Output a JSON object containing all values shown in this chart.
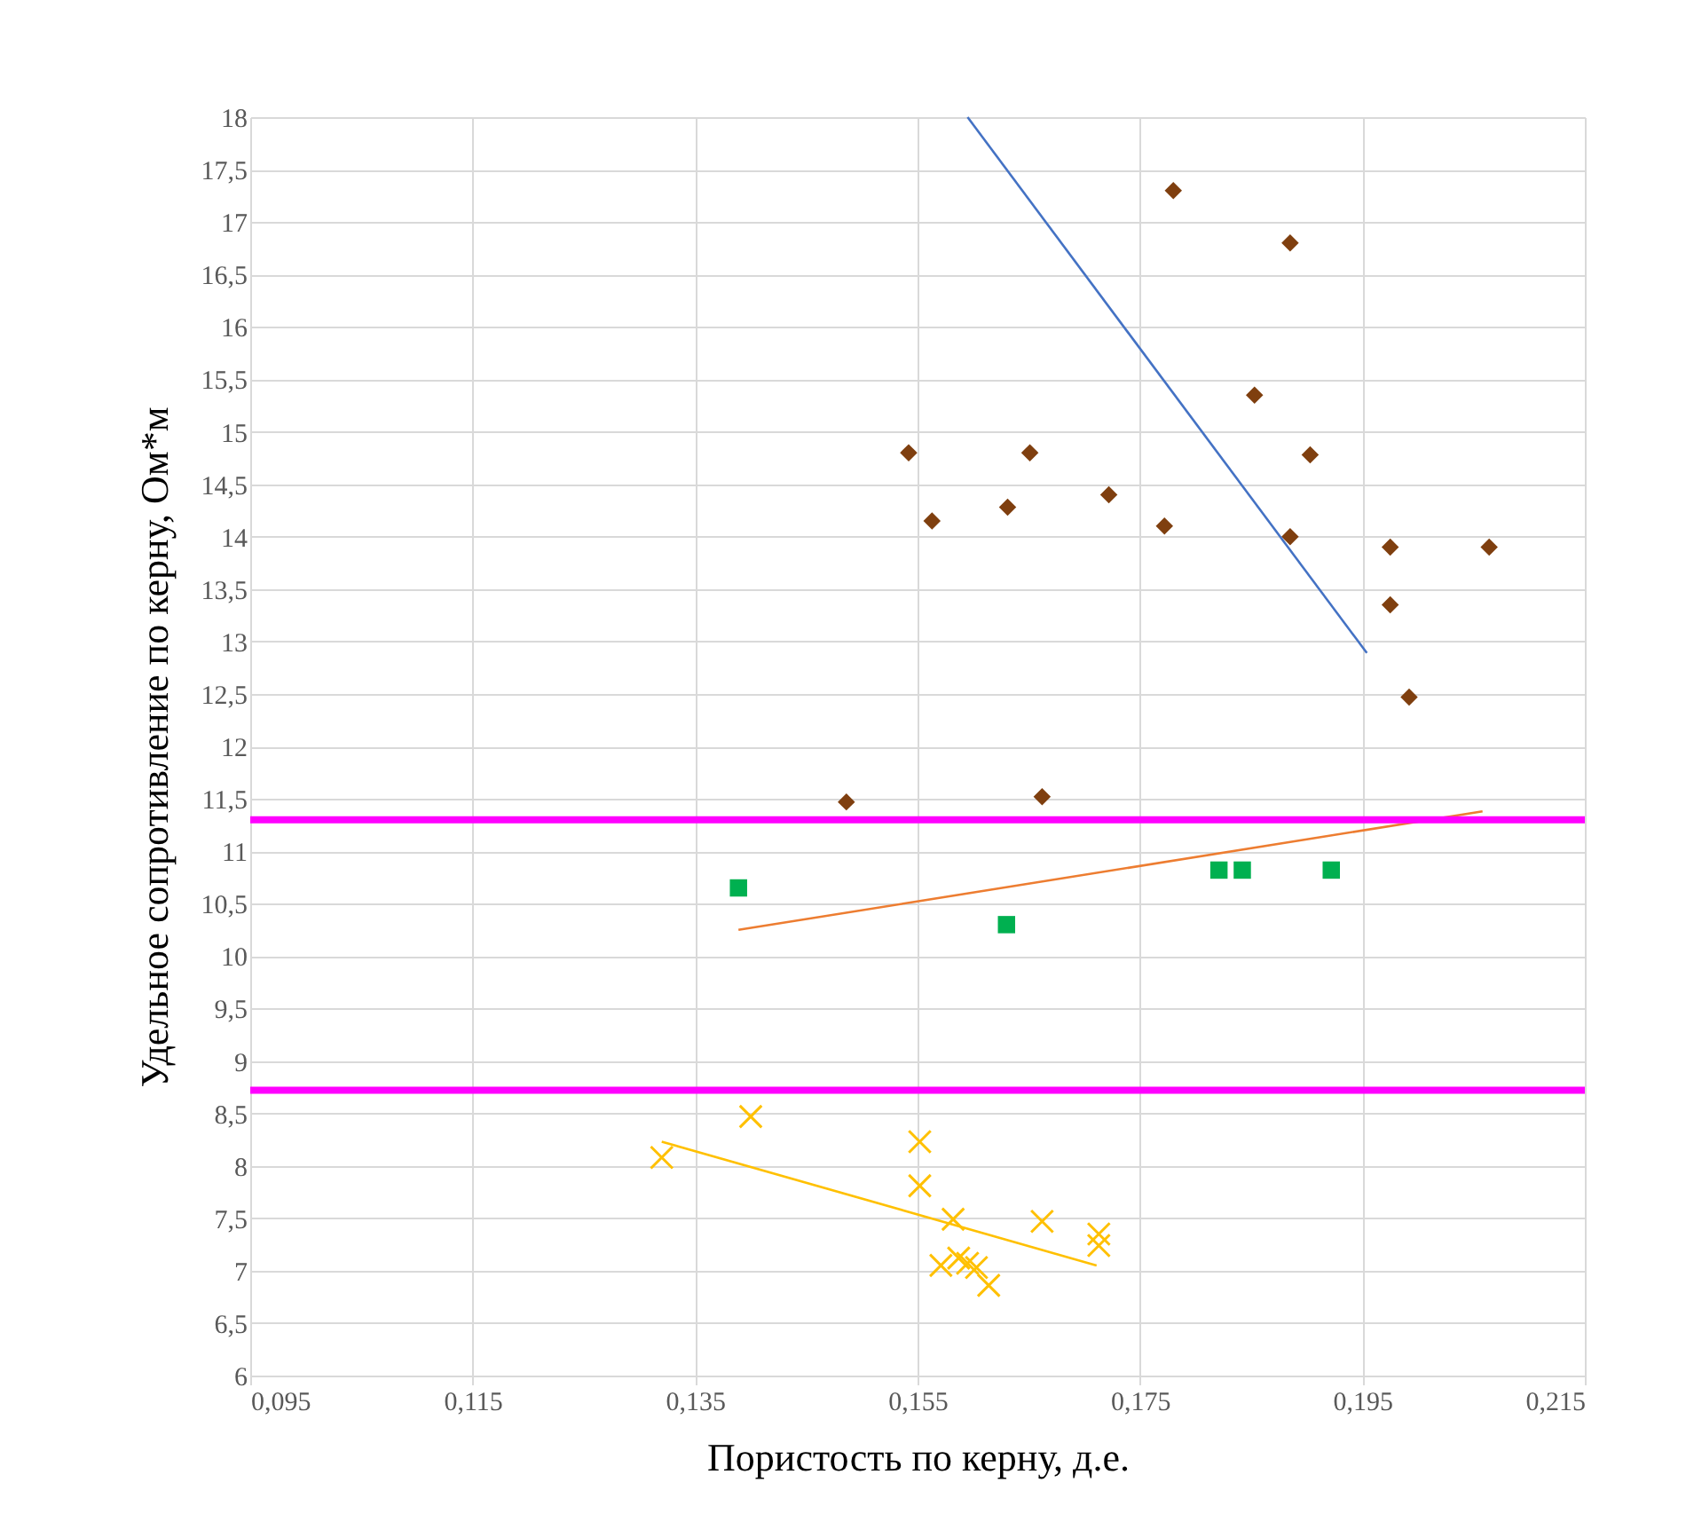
{
  "chart_data": {
    "type": "scatter",
    "xlabel": "Пористость по керну, д.е.",
    "ylabel": "Удельное сопротивление по керну, Ом*м",
    "xlim": [
      0.095,
      0.215
    ],
    "ylim": [
      6,
      18
    ],
    "xticks": [
      {
        "value": 0.095,
        "label": "0,095"
      },
      {
        "value": 0.115,
        "label": "0,115"
      },
      {
        "value": 0.135,
        "label": "0,135"
      },
      {
        "value": 0.155,
        "label": "0,155"
      },
      {
        "value": 0.175,
        "label": "0,175"
      },
      {
        "value": 0.195,
        "label": "0,195"
      },
      {
        "value": 0.215,
        "label": "0,215"
      }
    ],
    "yticks": [
      6,
      {
        "value": 6.5,
        "label": "6,5"
      },
      7,
      {
        "value": 7.5,
        "label": "7,5"
      },
      8,
      {
        "value": 8.5,
        "label": "8,5"
      },
      9,
      {
        "value": 9.5,
        "label": "9,5"
      },
      10,
      {
        "value": 10.5,
        "label": "10,5"
      },
      11,
      {
        "value": 11.5,
        "label": "11,5"
      },
      12,
      {
        "value": 12.5,
        "label": "12,5"
      },
      13,
      {
        "value": 13.5,
        "label": "13,5"
      },
      14,
      {
        "value": 14.5,
        "label": "14,5"
      },
      15,
      {
        "value": 15.5,
        "label": "15,5"
      },
      16,
      {
        "value": 16.5,
        "label": "16,5"
      },
      17,
      {
        "value": 17.5,
        "label": "17,5"
      },
      18
    ],
    "grid": true,
    "series": [
      {
        "type": "scatter",
        "marker": "diamond",
        "color": "#7f3f0f",
        "x": [
          0.178,
          0.1885,
          0.1853,
          0.1903,
          0.1542,
          0.1651,
          0.1563,
          0.1631,
          0.1722,
          0.1772,
          0.1885,
          0.1975,
          0.2064,
          0.1975,
          0.1992,
          0.1486,
          0.1662
        ],
        "values": [
          17.3,
          16.8,
          15.35,
          14.78,
          14.8,
          14.8,
          14.15,
          14.28,
          14.4,
          14.1,
          14.0,
          13.9,
          13.9,
          13.35,
          12.47,
          11.47,
          11.52
        ]
      },
      {
        "type": "scatter",
        "marker": "square",
        "color": "#00b050",
        "x": [
          0.1389,
          0.163,
          0.1821,
          0.1842,
          0.1922
        ],
        "values": [
          10.65,
          10.3,
          10.82,
          10.82,
          10.82
        ]
      },
      {
        "type": "scatter",
        "marker": "cross",
        "color": "#ffc000",
        "x": [
          0.132,
          0.14,
          0.1552,
          0.1552,
          0.1582,
          0.1662,
          0.1713,
          0.1713,
          0.1571,
          0.1587,
          0.1595,
          0.1603,
          0.1614
        ],
        "values": [
          8.08,
          8.47,
          8.23,
          7.81,
          7.49,
          7.47,
          7.35,
          7.24,
          7.05,
          7.12,
          7.07,
          7.03,
          6.86
        ]
      },
      {
        "type": "line",
        "marker": "none",
        "color": "#4472c4",
        "x": [
          0.1595,
          0.1954
        ],
        "values": [
          18,
          12.89
        ]
      },
      {
        "type": "line",
        "marker": "none",
        "color": "#ed7d31",
        "x": [
          0.1389,
          0.2058
        ],
        "values": [
          10.25,
          11.38
        ]
      },
      {
        "type": "line",
        "marker": "none",
        "color": "#ffc000",
        "x": [
          0.132,
          0.1711
        ],
        "values": [
          8.23,
          7.05
        ]
      }
    ],
    "ref_lines": [
      {
        "axis": "y",
        "value": 11.3,
        "color": "#ff00ff"
      },
      {
        "axis": "y",
        "value": 8.72,
        "color": "#ff00ff"
      }
    ]
  }
}
